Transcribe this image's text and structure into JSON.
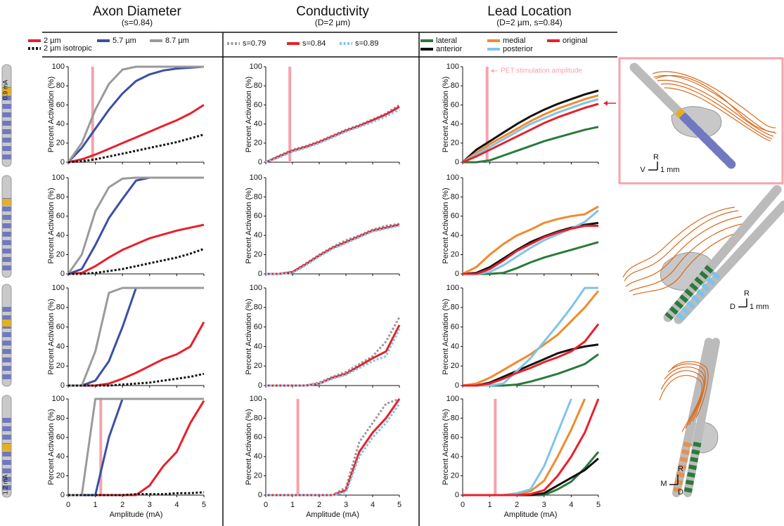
{
  "lead_labels": [
    "0.9 mA",
    "1.2 mA"
  ],
  "annotation": "PET stimulation amplitude",
  "scale_bars": [
    [
      "R",
      "V",
      "1 mm"
    ],
    [
      "R",
      "D",
      "1 mm"
    ],
    [
      "R",
      "M",
      "D"
    ]
  ],
  "chart_data": [
    {
      "type": "line",
      "title": "Axon Diameter",
      "subtitle": "(s=0.84)",
      "xlabel": "Amplitude (mA)",
      "ylabel": "Percent Activation (%)",
      "x": [
        0,
        0.5,
        1,
        1.5,
        2,
        2.5,
        3,
        3.5,
        4,
        4.5,
        5
      ],
      "xlim": [
        0,
        5
      ],
      "xticks": [
        0,
        1,
        2,
        3,
        4,
        5
      ],
      "ylim": [
        0,
        100
      ],
      "yticks": [
        0,
        20,
        40,
        60,
        80,
        100
      ],
      "pet_amplitudes": [
        0.9,
        null,
        null,
        1.2
      ],
      "pet_color": "#f4a3ab",
      "series": [
        {
          "name": "2 µm",
          "color": "#e8202a",
          "dash": "solid",
          "values": [
            [
              0,
              3,
              8,
              14,
              20,
              26,
              32,
              38,
              44,
              51,
              60
            ],
            [
              0,
              1,
              8,
              17,
              25,
              31,
              37,
              41,
              45,
              48,
              51
            ],
            [
              0,
              0,
              0,
              2,
              7,
              13,
              20,
              27,
              32,
              40,
              65
            ],
            [
              0,
              0,
              0,
              0,
              0,
              0,
              10,
              30,
              45,
              75,
              98
            ]
          ]
        },
        {
          "name": "5.7 µm",
          "color": "#3a4fa5",
          "dash": "solid",
          "values": [
            [
              0,
              15,
              35,
              55,
              72,
              85,
              92,
              96,
              98,
              99,
              100
            ],
            [
              0,
              5,
              30,
              58,
              78,
              97,
              100,
              100,
              100,
              100,
              100
            ],
            [
              0,
              0,
              5,
              25,
              60,
              100,
              100,
              100,
              100,
              100,
              100
            ],
            [
              0,
              0,
              0,
              60,
              100,
              100,
              100,
              100,
              100,
              100,
              100
            ]
          ]
        },
        {
          "name": "8.7 µm",
          "color": "#9a9a9a",
          "dash": "solid",
          "values": [
            [
              0,
              20,
              55,
              82,
              97,
              100,
              100,
              100,
              100,
              100,
              100
            ],
            [
              0,
              20,
              65,
              90,
              99,
              100,
              100,
              100,
              100,
              100,
              100
            ],
            [
              0,
              0,
              35,
              95,
              100,
              100,
              100,
              100,
              100,
              100,
              100
            ],
            [
              0,
              0,
              100,
              100,
              100,
              100,
              100,
              100,
              100,
              100,
              100
            ]
          ]
        },
        {
          "name": "2 µm isotropic",
          "color": "#111111",
          "dash": "dotted",
          "values": [
            [
              0,
              1,
              3,
              6,
              9,
              12,
              15,
              18,
              21,
              25,
              29
            ],
            [
              0,
              0,
              1,
              3,
              5,
              8,
              11,
              14,
              17,
              21,
              26
            ],
            [
              0,
              0,
              0,
              0,
              1,
              2,
              3,
              5,
              7,
              9,
              12
            ],
            [
              0,
              0,
              0,
              0,
              0,
              1,
              1,
              1,
              2,
              2,
              3
            ]
          ]
        }
      ]
    },
    {
      "type": "line",
      "title": "Conductivity",
      "subtitle": "(D=2 µm)",
      "xlabel": "Amplitude (mA)",
      "ylabel": "Percent Activation (%)",
      "x": [
        0,
        0.5,
        1,
        1.5,
        2,
        2.5,
        3,
        3.5,
        4,
        4.5,
        5
      ],
      "xlim": [
        0,
        5
      ],
      "xticks": [
        0,
        1,
        2,
        3,
        4,
        5
      ],
      "ylim": [
        0,
        100
      ],
      "yticks": [
        0,
        20,
        40,
        60,
        80,
        100
      ],
      "pet_amplitudes": [
        0.9,
        null,
        null,
        1.2
      ],
      "pet_color": "#f4a3ab",
      "series": [
        {
          "name": "s=0.79",
          "color": "#9a9a9a",
          "dash": "dotted",
          "values": [
            [
              0,
              7,
              13,
              17,
              22,
              28,
              34,
              39,
              45,
              51,
              60
            ],
            [
              0,
              0,
              2,
              11,
              20,
              28,
              35,
              40,
              46,
              50,
              52
            ],
            [
              0,
              0,
              0,
              0,
              3,
              9,
              14,
              22,
              30,
              45,
              70
            ],
            [
              0,
              0,
              0,
              0,
              0,
              0,
              8,
              55,
              75,
              95,
              100
            ]
          ]
        },
        {
          "name": "s=0.84",
          "color": "#e8202a",
          "dash": "solid",
          "values": [
            [
              0,
              6,
              12,
              16,
              21,
              27,
              33,
              38,
              44,
              50,
              58
            ],
            [
              0,
              0,
              2,
              10,
              19,
              27,
              33,
              39,
              45,
              48,
              51
            ],
            [
              0,
              0,
              0,
              0,
              2,
              8,
              12,
              20,
              28,
              35,
              62
            ],
            [
              0,
              0,
              0,
              0,
              0,
              0,
              5,
              45,
              65,
              80,
              100
            ]
          ]
        },
        {
          "name": "s=0.89",
          "color": "#7ec4ea",
          "dash": "dotted",
          "values": [
            [
              0,
              5,
              11,
              15,
              20,
              26,
              32,
              37,
              42,
              48,
              55
            ],
            [
              0,
              0,
              1,
              9,
              18,
              26,
              32,
              38,
              44,
              47,
              50
            ],
            [
              0,
              0,
              0,
              0,
              2,
              7,
              11,
              18,
              25,
              30,
              58
            ],
            [
              0,
              0,
              0,
              0,
              0,
              0,
              3,
              40,
              60,
              75,
              95
            ]
          ]
        }
      ]
    },
    {
      "type": "line",
      "title": "Lead Location",
      "subtitle": "(D=2 µm, s=0.84)",
      "xlabel": "Amplitude (mA)",
      "ylabel": "Percent Activation (%)",
      "x": [
        0,
        0.5,
        1,
        1.5,
        2,
        2.5,
        3,
        3.5,
        4,
        4.5,
        5
      ],
      "xlim": [
        0,
        5
      ],
      "xticks": [
        0,
        1,
        2,
        3,
        4,
        5
      ],
      "ylim": [
        0,
        100
      ],
      "yticks": [
        0,
        20,
        40,
        60,
        80,
        100
      ],
      "pet_amplitudes": [
        0.9,
        null,
        null,
        1.2
      ],
      "pet_color": "#f4a3ab",
      "series": [
        {
          "name": "lateral",
          "color": "#2a7a3a",
          "dash": "solid",
          "values": [
            [
              0,
              0,
              2,
              7,
              12,
              17,
              22,
              26,
              30,
              34,
              37
            ],
            [
              0,
              0,
              0,
              1,
              6,
              12,
              17,
              21,
              25,
              29,
              33
            ],
            [
              0,
              0,
              0,
              0,
              1,
              4,
              8,
              12,
              17,
              22,
              32
            ],
            [
              0,
              0,
              0,
              0,
              0,
              0,
              0,
              6,
              14,
              28,
              45
            ]
          ]
        },
        {
          "name": "anterior",
          "color": "#111111",
          "dash": "solid",
          "values": [
            [
              0,
              13,
              22,
              31,
              40,
              48,
              55,
              61,
              66,
              71,
              75
            ],
            [
              0,
              1,
              7,
              16,
              25,
              33,
              39,
              44,
              48,
              51,
              53
            ],
            [
              0,
              0,
              3,
              9,
              15,
              21,
              27,
              33,
              37,
              40,
              42
            ],
            [
              0,
              0,
              0,
              0,
              0,
              0,
              2,
              10,
              18,
              26,
              38
            ]
          ]
        },
        {
          "name": "medial",
          "color": "#f08a2e",
          "dash": "solid",
          "values": [
            [
              0,
              10,
              19,
              27,
              35,
              43,
              50,
              56,
              61,
              66,
              70
            ],
            [
              0,
              7,
              20,
              31,
              40,
              46,
              53,
              57,
              60,
              62,
              70
            ],
            [
              0,
              2,
              8,
              16,
              24,
              32,
              42,
              52,
              66,
              80,
              97
            ],
            [
              0,
              0,
              0,
              0,
              1,
              4,
              15,
              40,
              68,
              100,
              null
            ]
          ]
        },
        {
          "name": "posterior",
          "color": "#7ec4ea",
          "dash": "solid",
          "values": [
            [
              0,
              8,
              16,
              24,
              32,
              40,
              46,
              52,
              57,
              62,
              66
            ],
            [
              0,
              0,
              2,
              9,
              18,
              27,
              35,
              41,
              47,
              54,
              66
            ],
            [
              0,
              0,
              0,
              2,
              15,
              28,
              45,
              62,
              80,
              100,
              100
            ],
            [
              0,
              0,
              0,
              0,
              2,
              6,
              30,
              65,
              100,
              null,
              null
            ]
          ]
        },
        {
          "name": "original",
          "color": "#e8202a",
          "dash": "solid",
          "values": [
            [
              0,
              6,
              13,
              20,
              27,
              34,
              41,
              47,
              52,
              57,
              61
            ],
            [
              0,
              0,
              5,
              14,
              24,
              31,
              38,
              43,
              47,
              50,
              50
            ],
            [
              0,
              0,
              2,
              7,
              13,
              18,
              24,
              29,
              35,
              45,
              63
            ],
            [
              0,
              0,
              0,
              0,
              0,
              1,
              5,
              20,
              40,
              65,
              100
            ]
          ]
        }
      ]
    }
  ]
}
